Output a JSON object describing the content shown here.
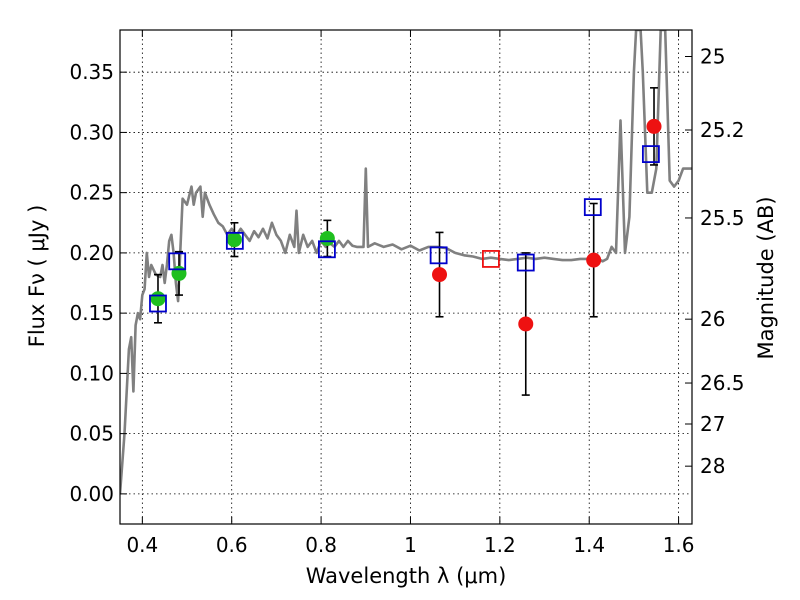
{
  "chart_data": {
    "type": "scatter",
    "xlabel": "Wavelength  λ (μm)",
    "ylabel": "Flux  Fν  ( μJy )",
    "y2label": "Magnitude (AB)",
    "xlim": [
      0.35,
      1.63
    ],
    "ylim": [
      -0.025,
      0.385
    ],
    "xticks": [
      0.4,
      0.6,
      0.8,
      1.0,
      1.2,
      1.4,
      1.6
    ],
    "xtick_labels": [
      "0.4",
      "0.6",
      "0.8",
      "1",
      "1.2",
      "1.4",
      "1.6"
    ],
    "yticks": [
      0.0,
      0.05,
      0.1,
      0.15,
      0.2,
      0.25,
      0.3,
      0.35
    ],
    "ytick_labels": [
      "0.00",
      "0.05",
      "0.10",
      "0.15",
      "0.20",
      "0.25",
      "0.30",
      "0.35"
    ],
    "y2ticks": [
      {
        "label": "25",
        "flux": 0.363
      },
      {
        "label": "25.2",
        "flux": 0.302
      },
      {
        "label": "25.5",
        "flux": 0.229
      },
      {
        "label": "26",
        "flux": 0.145
      },
      {
        "label": "26.5",
        "flux": 0.092
      },
      {
        "label": "27",
        "flux": 0.058
      },
      {
        "label": "28",
        "flux": 0.023
      }
    ],
    "grid": true,
    "colors": {
      "model": "#808080",
      "green": "#1fbf1f",
      "red": "#ee1111",
      "square": "#0000cc",
      "square_red": "#ee1111",
      "errorbar": "#000000"
    },
    "series": [
      {
        "marker": "line",
        "points": [
          [
            0.35,
            0.0
          ],
          [
            0.36,
            0.05
          ],
          [
            0.37,
            0.12
          ],
          [
            0.375,
            0.13
          ],
          [
            0.38,
            0.085
          ],
          [
            0.385,
            0.14
          ],
          [
            0.39,
            0.15
          ],
          [
            0.395,
            0.145
          ],
          [
            0.4,
            0.165
          ],
          [
            0.405,
            0.17
          ],
          [
            0.41,
            0.2
          ],
          [
            0.415,
            0.18
          ],
          [
            0.42,
            0.19
          ],
          [
            0.43,
            0.182
          ],
          [
            0.44,
            0.18
          ],
          [
            0.445,
            0.19
          ],
          [
            0.45,
            0.175
          ],
          [
            0.455,
            0.19
          ],
          [
            0.46,
            0.21
          ],
          [
            0.465,
            0.215
          ],
          [
            0.47,
            0.2
          ],
          [
            0.475,
            0.175
          ],
          [
            0.48,
            0.16
          ],
          [
            0.49,
            0.245
          ],
          [
            0.5,
            0.24
          ],
          [
            0.51,
            0.255
          ],
          [
            0.515,
            0.24
          ],
          [
            0.52,
            0.25
          ],
          [
            0.53,
            0.255
          ],
          [
            0.535,
            0.23
          ],
          [
            0.54,
            0.25
          ],
          [
            0.55,
            0.24
          ],
          [
            0.56,
            0.232
          ],
          [
            0.57,
            0.225
          ],
          [
            0.58,
            0.222
          ],
          [
            0.59,
            0.215
          ],
          [
            0.6,
            0.22
          ],
          [
            0.61,
            0.214
          ],
          [
            0.62,
            0.22
          ],
          [
            0.63,
            0.215
          ],
          [
            0.64,
            0.21
          ],
          [
            0.65,
            0.218
          ],
          [
            0.66,
            0.213
          ],
          [
            0.67,
            0.22
          ],
          [
            0.68,
            0.212
          ],
          [
            0.69,
            0.225
          ],
          [
            0.7,
            0.215
          ],
          [
            0.71,
            0.21
          ],
          [
            0.72,
            0.2
          ],
          [
            0.73,
            0.215
          ],
          [
            0.74,
            0.205
          ],
          [
            0.745,
            0.235
          ],
          [
            0.75,
            0.2
          ],
          [
            0.76,
            0.215
          ],
          [
            0.77,
            0.205
          ],
          [
            0.78,
            0.21
          ],
          [
            0.79,
            0.2
          ],
          [
            0.8,
            0.21
          ],
          [
            0.81,
            0.205
          ],
          [
            0.82,
            0.208
          ],
          [
            0.83,
            0.205
          ],
          [
            0.84,
            0.21
          ],
          [
            0.85,
            0.205
          ],
          [
            0.86,
            0.21
          ],
          [
            0.87,
            0.206
          ],
          [
            0.88,
            0.205
          ],
          [
            0.895,
            0.205
          ],
          [
            0.9,
            0.27
          ],
          [
            0.905,
            0.205
          ],
          [
            0.92,
            0.208
          ],
          [
            0.94,
            0.205
          ],
          [
            0.96,
            0.207
          ],
          [
            0.98,
            0.203
          ],
          [
            1.0,
            0.206
          ],
          [
            1.02,
            0.202
          ],
          [
            1.04,
            0.205
          ],
          [
            1.06,
            0.205
          ],
          [
            1.08,
            0.204
          ],
          [
            1.1,
            0.2
          ],
          [
            1.12,
            0.198
          ],
          [
            1.14,
            0.197
          ],
          [
            1.16,
            0.195
          ],
          [
            1.18,
            0.196
          ],
          [
            1.2,
            0.195
          ],
          [
            1.22,
            0.194
          ],
          [
            1.24,
            0.195
          ],
          [
            1.26,
            0.196
          ],
          [
            1.28,
            0.195
          ],
          [
            1.3,
            0.196
          ],
          [
            1.32,
            0.195
          ],
          [
            1.34,
            0.194
          ],
          [
            1.36,
            0.194
          ],
          [
            1.38,
            0.195
          ],
          [
            1.4,
            0.195
          ],
          [
            1.42,
            0.195
          ],
          [
            1.43,
            0.193
          ],
          [
            1.44,
            0.195
          ],
          [
            1.45,
            0.205
          ],
          [
            1.46,
            0.2
          ],
          [
            1.47,
            0.31
          ],
          [
            1.48,
            0.2
          ],
          [
            1.49,
            0.23
          ],
          [
            1.5,
            0.35
          ],
          [
            1.505,
            0.385
          ],
          [
            1.515,
            0.385
          ],
          [
            1.52,
            0.35
          ],
          [
            1.53,
            0.25
          ],
          [
            1.54,
            0.25
          ],
          [
            1.55,
            0.27
          ],
          [
            1.56,
            0.385
          ],
          [
            1.57,
            0.385
          ],
          [
            1.58,
            0.26
          ],
          [
            1.59,
            0.255
          ],
          [
            1.6,
            0.26
          ],
          [
            1.61,
            0.27
          ],
          [
            1.63,
            0.27
          ]
        ]
      },
      {
        "marker": "circle-green",
        "points": [
          [
            0.435,
            0.162,
            0.02
          ],
          [
            0.482,
            0.183,
            0.018
          ],
          [
            0.606,
            0.211,
            0.014
          ],
          [
            0.814,
            0.212,
            0.015
          ]
        ]
      },
      {
        "marker": "circle-red",
        "points": [
          [
            1.065,
            0.182,
            0.035
          ],
          [
            1.258,
            0.141,
            0.059
          ],
          [
            1.41,
            0.194,
            0.047
          ],
          [
            1.545,
            0.305,
            0.032
          ]
        ]
      },
      {
        "marker": "square-blue",
        "points": [
          [
            0.435,
            0.158
          ],
          [
            0.478,
            0.193
          ],
          [
            0.607,
            0.21
          ],
          [
            0.813,
            0.203
          ],
          [
            1.063,
            0.198
          ],
          [
            1.258,
            0.192
          ],
          [
            1.408,
            0.238
          ],
          [
            1.538,
            0.282
          ]
        ]
      },
      {
        "marker": "square-red",
        "points": [
          [
            1.18,
            0.195
          ]
        ]
      }
    ]
  }
}
